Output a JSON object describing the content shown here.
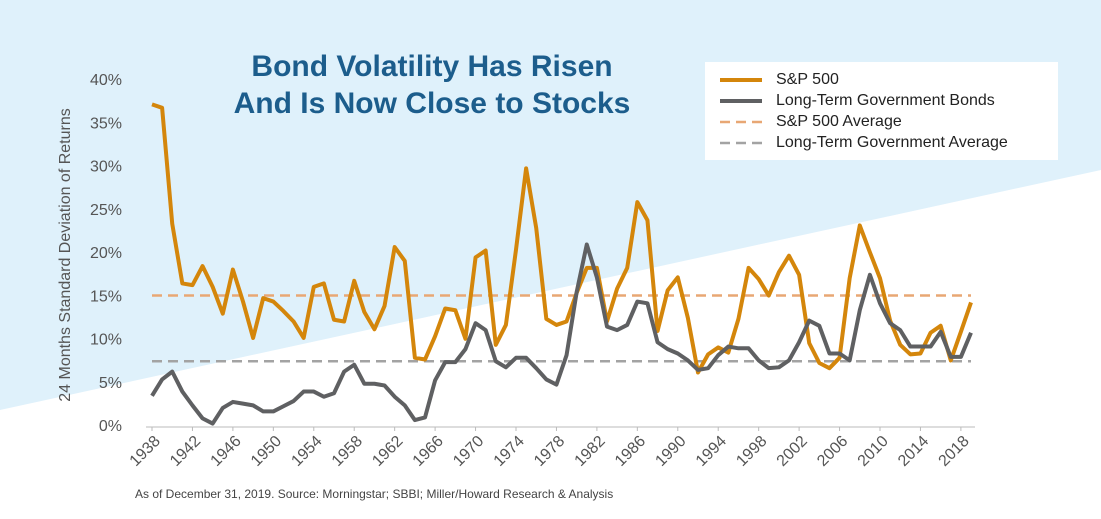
{
  "chart_data": {
    "type": "line",
    "title_lines": [
      "Bond Volatility Has Risen",
      "And Is Now Close to Stocks"
    ],
    "y_label": "24 Months Standard Deviation of Returns",
    "footnote": "As of December 31, 2019.  Source: Morningstar; SBBI; Miller/Howard Research & Analysis",
    "x": [
      1938,
      1939,
      1940,
      1941,
      1942,
      1943,
      1944,
      1945,
      1946,
      1947,
      1948,
      1949,
      1950,
      1951,
      1952,
      1953,
      1954,
      1955,
      1956,
      1957,
      1958,
      1959,
      1960,
      1961,
      1962,
      1963,
      1964,
      1965,
      1966,
      1967,
      1968,
      1969,
      1970,
      1971,
      1972,
      1973,
      1974,
      1975,
      1976,
      1977,
      1978,
      1979,
      1980,
      1981,
      1982,
      1983,
      1984,
      1985,
      1986,
      1987,
      1988,
      1989,
      1990,
      1991,
      1992,
      1993,
      1994,
      1995,
      1996,
      1997,
      1998,
      1999,
      2000,
      2001,
      2002,
      2003,
      2004,
      2005,
      2006,
      2007,
      2008,
      2009,
      2010,
      2011,
      2012,
      2013,
      2014,
      2015,
      2016,
      2017,
      2018,
      2019
    ],
    "xlim": [
      1938,
      2019
    ],
    "xticks": [
      1938,
      1942,
      1946,
      1950,
      1954,
      1958,
      1962,
      1966,
      1970,
      1974,
      1978,
      1982,
      1986,
      1990,
      1994,
      1998,
      2002,
      2006,
      2010,
      2014,
      2018
    ],
    "ylim": [
      0,
      40
    ],
    "yticks": [
      {
        "value": 0,
        "label": "0%"
      },
      {
        "value": 5,
        "label": "5%"
      },
      {
        "value": 10,
        "label": "10%"
      },
      {
        "value": 15,
        "label": "15%"
      },
      {
        "value": 20,
        "label": "20%"
      },
      {
        "value": 25,
        "label": "25%"
      },
      {
        "value": 30,
        "label": "30%"
      },
      {
        "value": 35,
        "label": "35%"
      },
      {
        "value": 40,
        "label": "40%"
      }
    ],
    "series": [
      {
        "name": "S&P 500",
        "color": "#d4860b",
        "values": [
          37.3,
          36.9,
          23.5,
          16.6,
          16.4,
          18.6,
          16.2,
          13.1,
          18.2,
          14.5,
          10.3,
          14.9,
          14.5,
          13.4,
          12.2,
          10.3,
          16.2,
          16.6,
          12.4,
          12.2,
          16.9,
          13.3,
          11.3,
          14.0,
          20.8,
          19.2,
          8.0,
          7.8,
          10.5,
          13.7,
          13.5,
          10.2,
          19.6,
          20.4,
          9.5,
          11.8,
          20.5,
          29.9,
          23.0,
          12.5,
          11.8,
          12.2,
          15.5,
          18.4,
          18.4,
          12.2,
          16.0,
          18.4,
          26.0,
          23.9,
          11.1,
          15.8,
          17.3,
          12.6,
          6.3,
          8.4,
          9.2,
          8.6,
          12.5,
          18.4,
          17.1,
          15.2,
          17.9,
          19.8,
          17.6,
          9.7,
          7.4,
          6.8,
          8.0,
          17.2,
          23.3,
          20.2,
          17.2,
          12.3,
          9.5,
          8.4,
          8.5,
          10.9,
          11.7,
          7.7,
          11.0,
          14.4
        ]
      },
      {
        "name": "Long-Term Government Bonds",
        "color": "#5f6062",
        "values": [
          3.6,
          5.5,
          6.4,
          4.1,
          2.5,
          1.0,
          0.4,
          2.2,
          2.9,
          2.7,
          2.5,
          1.8,
          1.8,
          2.4,
          3.0,
          4.1,
          4.1,
          3.5,
          3.9,
          6.4,
          7.2,
          5.0,
          5.0,
          4.8,
          3.5,
          2.5,
          0.8,
          1.1,
          5.4,
          7.5,
          7.5,
          9.0,
          12.0,
          11.2,
          7.6,
          6.9,
          8.0,
          8.0,
          6.8,
          5.5,
          4.9,
          8.3,
          15.6,
          21.1,
          17.3,
          11.6,
          11.2,
          11.8,
          14.5,
          14.3,
          9.8,
          9.0,
          8.5,
          7.7,
          6.6,
          6.8,
          8.3,
          9.3,
          9.1,
          9.1,
          7.7,
          6.8,
          6.9,
          7.7,
          9.8,
          12.3,
          11.7,
          8.5,
          8.5,
          7.7,
          13.5,
          17.6,
          14.3,
          12.0,
          11.2,
          9.3,
          9.3,
          9.3,
          11.0,
          8.1,
          8.1,
          10.9
        ]
      }
    ],
    "reference_lines": [
      {
        "name": "S&P 500 Average",
        "color": "#e8a774",
        "value": 15.2,
        "style": "dashed"
      },
      {
        "name": "Long-Term Government Average",
        "color": "#a3a3a3",
        "value": 7.6,
        "style": "dashed"
      }
    ]
  }
}
